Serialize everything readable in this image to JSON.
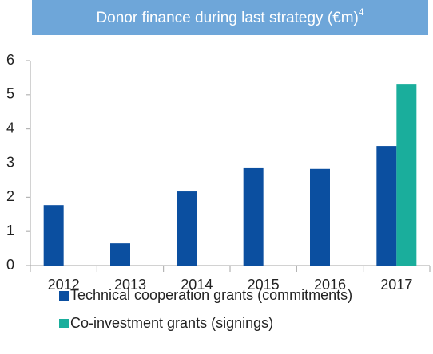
{
  "chart_data": {
    "type": "bar",
    "title": "Donor finance during last strategy (€m)",
    "title_footnote": "4",
    "categories": [
      "2012",
      "2013",
      "2014",
      "2015",
      "2016",
      "2017"
    ],
    "series": [
      {
        "name": "Technical cooperation grants (commitments)",
        "color": "#0b4fa0",
        "values": [
          1.77,
          0.65,
          2.17,
          2.85,
          2.83,
          3.5
        ]
      },
      {
        "name": "Co-investment grants (signings)",
        "color": "#1aae9c",
        "values": [
          null,
          null,
          null,
          null,
          null,
          5.32
        ]
      }
    ],
    "ylim": [
      0,
      6
    ],
    "yticks": [
      0,
      1,
      2,
      3,
      4,
      5,
      6
    ],
    "grid": false
  }
}
